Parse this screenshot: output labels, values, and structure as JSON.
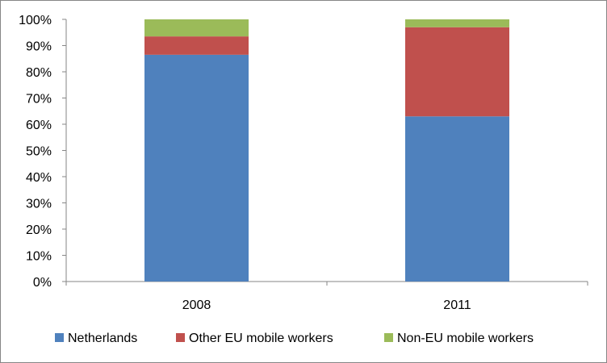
{
  "chart_data": {
    "type": "bar",
    "stacked": true,
    "categories": [
      "2008",
      "2011"
    ],
    "series": [
      {
        "name": "Netherlands",
        "values": [
          86.5,
          63
        ],
        "color": "#4F81BD"
      },
      {
        "name": "Other EU mobile workers",
        "values": [
          7,
          34
        ],
        "color": "#C0504D"
      },
      {
        "name": "Non-EU mobile workers",
        "values": [
          6.5,
          3
        ],
        "color": "#9BBB59"
      }
    ],
    "ylim": [
      0,
      100
    ],
    "y_ticks": [
      "0%",
      "10%",
      "20%",
      "30%",
      "40%",
      "50%",
      "60%",
      "70%",
      "80%",
      "90%",
      "100%"
    ],
    "grid": false,
    "legend_position": "bottom"
  }
}
